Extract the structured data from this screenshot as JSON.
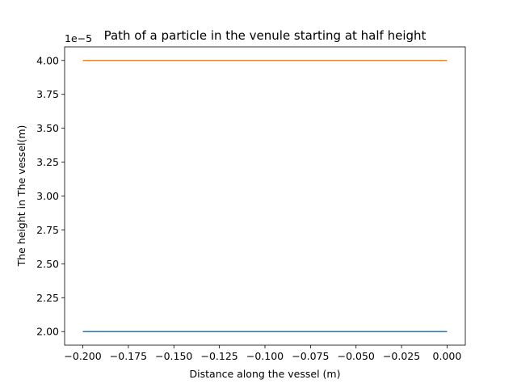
{
  "chart_data": {
    "type": "line",
    "title": "Path of a particle in the venule starting at half height",
    "xlabel": "Distance along the vessel (m)",
    "ylabel": "The height in The vessel(m)",
    "y_offset_text": "1e−5",
    "xlim": [
      -0.21,
      0.01
    ],
    "ylim": [
      1.9,
      4.1
    ],
    "grid": false,
    "x_ticks": [
      -0.2,
      -0.175,
      -0.15,
      -0.125,
      -0.1,
      -0.075,
      -0.05,
      -0.025,
      0.0
    ],
    "x_tick_labels": [
      "−0.200",
      "−0.175",
      "−0.150",
      "−0.125",
      "−0.100",
      "−0.075",
      "−0.050",
      "−0.025",
      "0.000"
    ],
    "y_ticks": [
      2.0,
      2.25,
      2.5,
      2.75,
      3.0,
      3.25,
      3.5,
      3.75,
      4.0
    ],
    "y_tick_labels": [
      "2.00",
      "2.25",
      "2.50",
      "2.75",
      "3.00",
      "3.25",
      "3.50",
      "3.75",
      "4.00"
    ],
    "series": [
      {
        "color": "#1f77b4",
        "x": [
          -0.2,
          0.0
        ],
        "y": [
          2.0,
          2.0
        ]
      },
      {
        "color": "#ff7f0e",
        "x": [
          -0.2,
          0.0
        ],
        "y": [
          4.0,
          4.0
        ]
      }
    ]
  }
}
